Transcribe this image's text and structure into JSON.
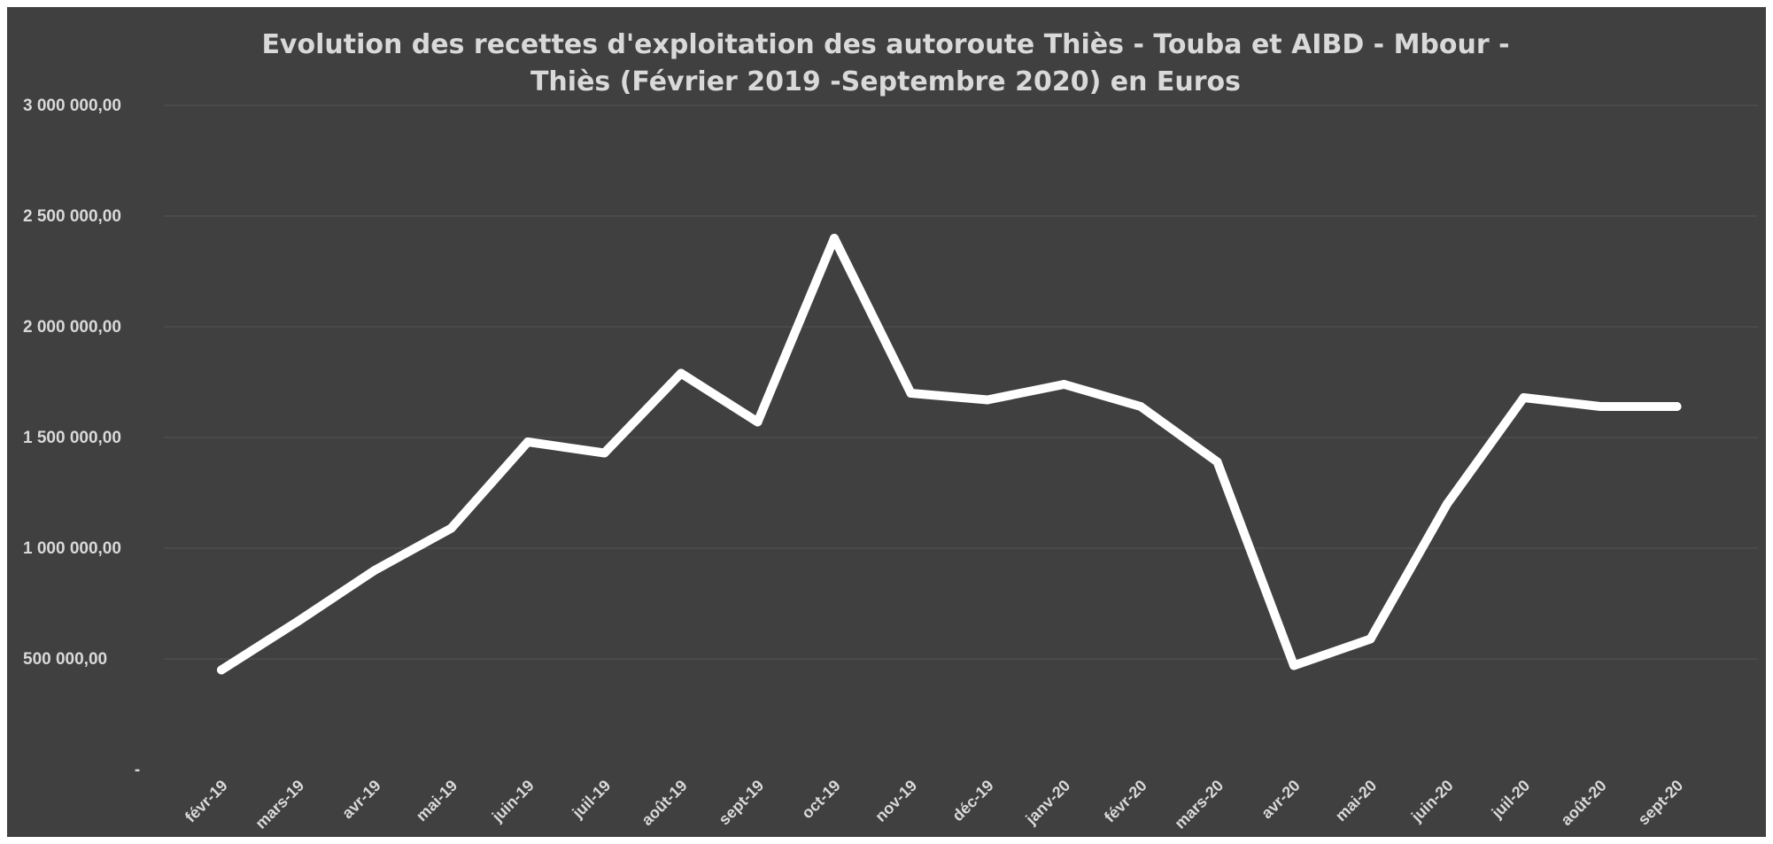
{
  "chart_data": {
    "type": "line",
    "title_lines": [
      "Evolution des recettes  d'exploitation des autoroute Thiès - Touba et AIBD - Mbour -",
      "Thiès (Février 2019 -Septembre 2020) en Euros"
    ],
    "xlabel": "",
    "ylabel": "",
    "ylim": [
      0,
      3000000
    ],
    "y_ticks": [
      {
        "value": 0,
        "label": "-"
      },
      {
        "value": 500000,
        "label": "500 000,00"
      },
      {
        "value": 1000000,
        "label": "1 000 000,00"
      },
      {
        "value": 1500000,
        "label": "1 500 000,00"
      },
      {
        "value": 2000000,
        "label": "2 000 000,00"
      },
      {
        "value": 2500000,
        "label": "2 500 000,00"
      },
      {
        "value": 3000000,
        "label": "3 000 000,00"
      }
    ],
    "grid": true,
    "legend": "none",
    "line_color": "#ffffff",
    "background_color": "#404040",
    "categories": [
      "févr-19",
      "mars-19",
      "avr-19",
      "mai-19",
      "juin-19",
      "juil-19",
      "août-19",
      "sept-19",
      "oct-19",
      "nov-19",
      "déc-19",
      "janv-20",
      "févr-20",
      "mars-20",
      "avr-20",
      "mai-20",
      "juin-20",
      "juil-20",
      "août-20",
      "sept-20"
    ],
    "values": [
      450000,
      670000,
      900000,
      1090000,
      1480000,
      1430000,
      1790000,
      1570000,
      2400000,
      1700000,
      1670000,
      1740000,
      1640000,
      1390000,
      470000,
      590000,
      1200000,
      1680000,
      1640000,
      1640000
    ]
  }
}
